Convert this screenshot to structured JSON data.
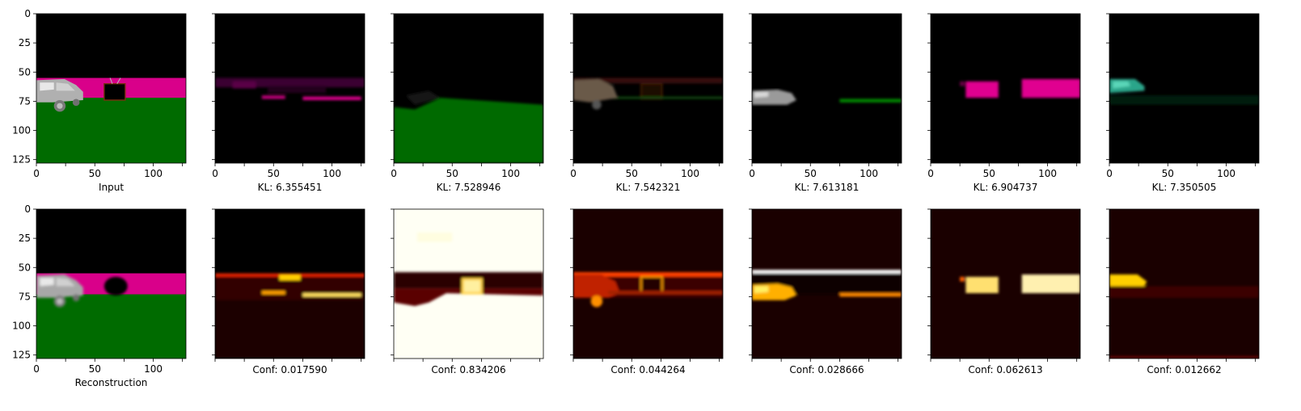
{
  "chart_data": {
    "type": "image_grid",
    "axis_ticks": [
      "0",
      "25",
      "50",
      "75",
      "100",
      "125"
    ],
    "axis_range": [
      0,
      128
    ],
    "rows": [
      {
        "name": "slots",
        "panels": [
          {
            "caption": "Input",
            "kind": "scene"
          },
          {
            "caption": "KL: 6.355451",
            "kind": "mask-magenta-line"
          },
          {
            "caption": "KL: 7.528946",
            "kind": "mask-green-ground"
          },
          {
            "caption": "KL: 7.542321",
            "kind": "mask-car-dim"
          },
          {
            "caption": "KL: 7.613181",
            "kind": "mask-car-white"
          },
          {
            "caption": "KL: 6.904737",
            "kind": "mask-magenta-wall"
          },
          {
            "caption": "KL: 7.350505",
            "kind": "mask-teal-car"
          }
        ]
      },
      {
        "name": "confidence",
        "panels": [
          {
            "caption": "Reconstruction",
            "kind": "scene-recon"
          },
          {
            "caption": "Conf: 0.017590",
            "kind": "heat-line"
          },
          {
            "caption": "Conf: 0.834206",
            "kind": "heat-bright"
          },
          {
            "caption": "Conf: 0.044264",
            "kind": "heat-car"
          },
          {
            "caption": "Conf: 0.028666",
            "kind": "heat-car-white"
          },
          {
            "caption": "Conf: 0.062613",
            "kind": "heat-wall"
          },
          {
            "caption": "Conf: 0.012662",
            "kind": "heat-teal"
          }
        ]
      }
    ],
    "colors": {
      "background": "#000000",
      "ground": "#006b00",
      "wall": "#d9008a",
      "car": "#b0b0b0",
      "heat_hot": "#ffff80",
      "heat_mid": "#ff6000",
      "heat_low": "#4a0000"
    }
  }
}
